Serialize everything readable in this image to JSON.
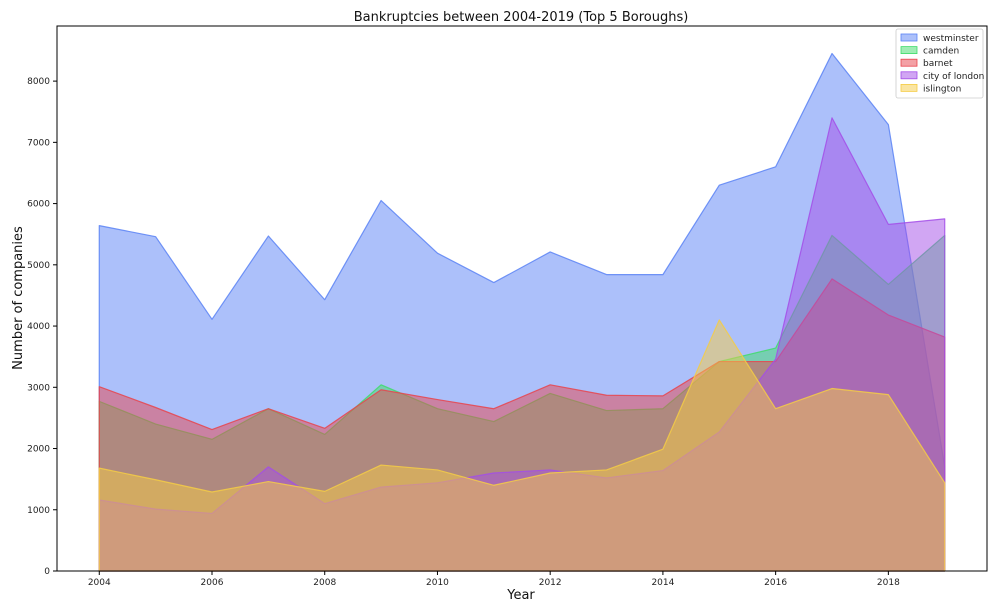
{
  "chart_data": {
    "type": "area",
    "title": "Bankruptcies between 2004-2019 (Top 5 Boroughs)",
    "xlabel": "Year",
    "ylabel": "Number of companies",
    "x": [
      2004,
      2005,
      2006,
      2007,
      2008,
      2009,
      2010,
      2011,
      2012,
      2013,
      2014,
      2015,
      2016,
      2017,
      2018,
      2019
    ],
    "xticks": [
      2004,
      2006,
      2008,
      2010,
      2012,
      2014,
      2016,
      2018
    ],
    "yticks": [
      0,
      1000,
      2000,
      3000,
      4000,
      5000,
      6000,
      7000,
      8000
    ],
    "xlim": [
      2003.25,
      2019.75
    ],
    "ylim": [
      0,
      8900
    ],
    "grid": false,
    "legend_position": "top-right",
    "series": [
      {
        "name": "westminster",
        "color": "#5a82f5",
        "values": [
          5640,
          5460,
          4110,
          5470,
          4430,
          6050,
          5190,
          4710,
          5210,
          4840,
          4840,
          6300,
          6600,
          8450,
          7290,
          1700
        ]
      },
      {
        "name": "camden",
        "color": "#3fdc6a",
        "values": [
          2770,
          2400,
          2150,
          2650,
          2230,
          3040,
          2650,
          2440,
          2900,
          2620,
          2650,
          3420,
          3640,
          5480,
          4680,
          5480
        ]
      },
      {
        "name": "barnet",
        "color": "#e8444c",
        "values": [
          3010,
          2670,
          2310,
          2650,
          2330,
          2960,
          2800,
          2650,
          3040,
          2870,
          2860,
          3420,
          3420,
          4770,
          4180,
          3820
        ]
      },
      {
        "name": "city of london",
        "color": "#a34ee8",
        "values": [
          1160,
          1010,
          940,
          1700,
          1100,
          1370,
          1440,
          1600,
          1650,
          1520,
          1640,
          2270,
          3460,
          7400,
          5660,
          5750
        ]
      },
      {
        "name": "islington",
        "color": "#f5cc45",
        "values": [
          1680,
          1490,
          1290,
          1460,
          1300,
          1730,
          1650,
          1400,
          1600,
          1650,
          1990,
          4100,
          2650,
          2980,
          2880,
          1440
        ]
      }
    ]
  }
}
